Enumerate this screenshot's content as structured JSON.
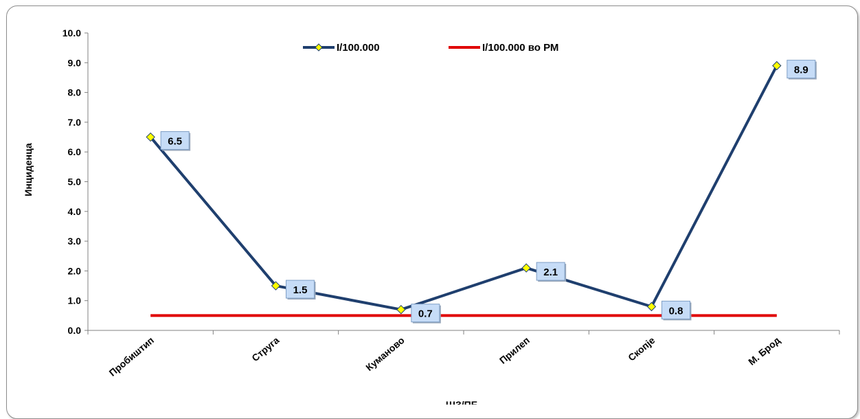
{
  "chart_data": {
    "type": "line",
    "categories": [
      "Пробиштип",
      "Струга",
      "Куманово",
      "Прилеп",
      "Скопје",
      "М. Брод"
    ],
    "series": [
      {
        "name": "I/100.000",
        "values": [
          6.5,
          1.5,
          0.7,
          2.1,
          0.8,
          8.9
        ],
        "color": "#1F3F6E",
        "marker_color": "#FFFF00"
      },
      {
        "name": "I/100.000 во РМ",
        "values": [
          0.5,
          0.5,
          0.5,
          0.5,
          0.5,
          0.5
        ],
        "color": "#E00000"
      }
    ],
    "data_labels": [
      "6.5",
      "1.5",
      "0.7",
      "2.1",
      "0.8",
      "8.9"
    ],
    "xlabel": "ШЗ/ПЕ",
    "ylabel": "Инциденца",
    "ylim": [
      0,
      10
    ],
    "yticks": [
      "0.0",
      "1.0",
      "2.0",
      "3.0",
      "4.0",
      "5.0",
      "6.0",
      "7.0",
      "8.0",
      "9.0",
      "10.0"
    ],
    "grid": false,
    "legend_position": "top-center"
  }
}
